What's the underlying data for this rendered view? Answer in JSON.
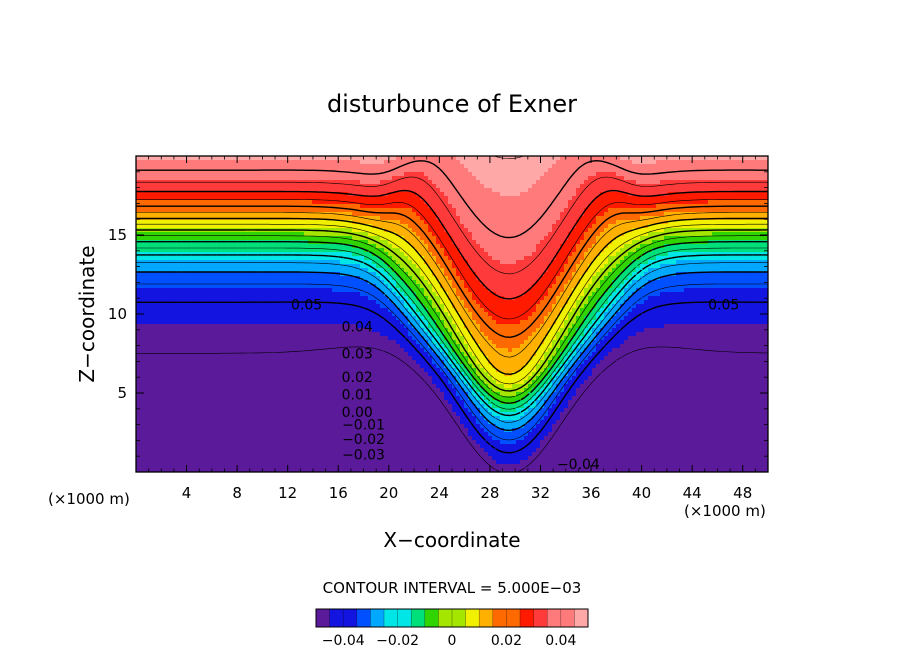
{
  "chart_data": {
    "type": "contour",
    "title": "disturbunce of Exner",
    "xlabel": "X−coordinate",
    "ylabel": "Z−coordinate",
    "x_unit": "(×1000 m)",
    "x_unit_left": "(×1000 m)",
    "xlim": [
      0,
      50
    ],
    "ylim": [
      0,
      20
    ],
    "x_ticks": [
      4,
      8,
      12,
      16,
      20,
      24,
      28,
      32,
      36,
      40,
      44,
      48
    ],
    "y_ticks": [
      5,
      10,
      15
    ],
    "contour_interval_label": "CONTOUR INTERVAL = 5.000E−03",
    "contour_interval": 0.005,
    "levels_range": [
      -0.045,
      0.05
    ],
    "negative_contours_dashed": true,
    "contour_labels": [
      {
        "text": "0.05",
        "x": 13.5,
        "z": 10.6
      },
      {
        "text": "0.05",
        "x": 46.5,
        "z": 10.6
      },
      {
        "text": "0.04",
        "x": 17.5,
        "z": 9.2
      },
      {
        "text": "0.03",
        "x": 17.5,
        "z": 7.5
      },
      {
        "text": "0.02",
        "x": 17.5,
        "z": 6.0
      },
      {
        "text": "0.01",
        "x": 17.5,
        "z": 4.9
      },
      {
        "text": "0.00",
        "x": 17.5,
        "z": 3.8
      },
      {
        "text": "−0.01",
        "x": 18.0,
        "z": 3.0
      },
      {
        "text": "−0.02",
        "x": 18.0,
        "z": 2.1
      },
      {
        "text": "−0.03",
        "x": 18.0,
        "z": 1.1
      },
      {
        "text": "−0.04",
        "x": 35.0,
        "z": 0.5
      }
    ],
    "colorbar": {
      "min": -0.05,
      "max": 0.05,
      "ticks": [
        -0.04,
        -0.02,
        0,
        0.02,
        0.04
      ],
      "tick_labels": [
        "−0.04",
        "−0.02",
        "0",
        "0.02",
        "0.04"
      ]
    },
    "colors": {
      "palette": [
        "#5a1a9a",
        "#1414e0",
        "#0050ff",
        "#00a8ff",
        "#00e6e6",
        "#00e07a",
        "#30d400",
        "#a4e600",
        "#f0f000",
        "#ffb000",
        "#ff6a00",
        "#ff1a00",
        "#ff3a3a",
        "#ff7a7a",
        "#ffa8a8"
      ],
      "white_region": "#ffffff"
    }
  }
}
